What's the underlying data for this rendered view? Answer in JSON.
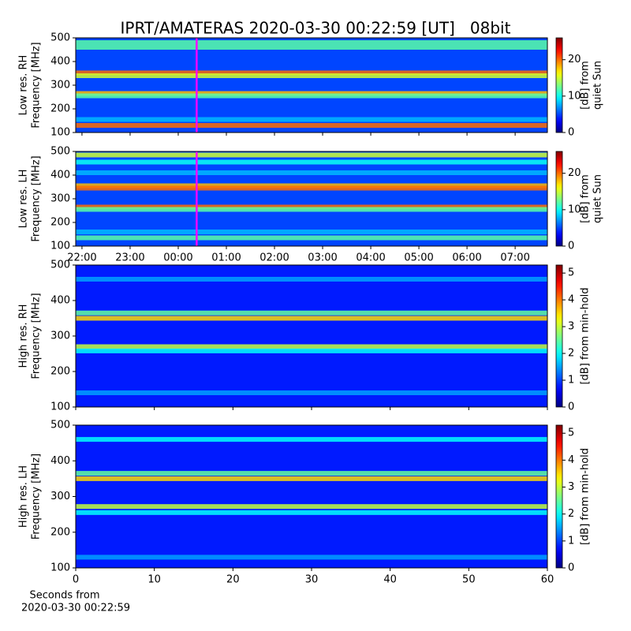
{
  "chart_data": [
    {
      "type": "heatmap",
      "title": "IPRT/AMATERAS 2020-03-30 00:22:59 [UT]   08bit",
      "ylabel": [
        "Low res. RH",
        "Frequency [MHz]"
      ],
      "ylim": [
        100,
        500
      ],
      "yticks": [
        100,
        200,
        300,
        400,
        500
      ],
      "xlim": [
        21.87,
        31.67
      ],
      "background": 5,
      "bands": [
        {
          "freq": 480,
          "level": 12
        },
        {
          "freq": 460,
          "level": 12
        },
        {
          "freq": 352,
          "level": 20
        },
        {
          "freq": 340,
          "level": 15
        },
        {
          "freq": 265,
          "level": 18
        },
        {
          "freq": 255,
          "level": 12
        },
        {
          "freq": 155,
          "level": 8
        },
        {
          "freq": 130,
          "level": 20
        }
      ],
      "marker_x": 24.383,
      "marker_color": "#ff00ff",
      "colorbar": {
        "label": [
          "[dB] from",
          "quiet Sun"
        ],
        "lim": [
          0,
          26
        ],
        "ticks": [
          0,
          10,
          20
        ]
      }
    },
    {
      "type": "heatmap",
      "ylabel": [
        "Low res. LH",
        "Frequency [MHz]"
      ],
      "ylim": [
        100,
        500
      ],
      "yticks": [
        100,
        200,
        300,
        400,
        500
      ],
      "xlim": [
        21.87,
        31.67
      ],
      "xticks": [
        {
          "value": 22,
          "label": "22:00"
        },
        {
          "value": 23,
          "label": "23:00"
        },
        {
          "value": 24,
          "label": "00:00"
        },
        {
          "value": 25,
          "label": "01:00"
        },
        {
          "value": 26,
          "label": "02:00"
        },
        {
          "value": 27,
          "label": "03:00"
        },
        {
          "value": 28,
          "label": "04:00"
        },
        {
          "value": 29,
          "label": "05:00"
        },
        {
          "value": 30,
          "label": "06:00"
        },
        {
          "value": 31,
          "label": "07:00"
        }
      ],
      "background": 5,
      "bands": [
        {
          "freq": 485,
          "level": 15
        },
        {
          "freq": 455,
          "level": 10
        },
        {
          "freq": 410,
          "level": 8
        },
        {
          "freq": 355,
          "level": 18
        },
        {
          "freq": 345,
          "level": 20
        },
        {
          "freq": 265,
          "level": 20
        },
        {
          "freq": 255,
          "level": 12
        },
        {
          "freq": 160,
          "level": 8
        },
        {
          "freq": 135,
          "level": 12
        }
      ],
      "marker_x": 24.383,
      "marker_color": "#ff00ff",
      "colorbar": {
        "label": [
          "[dB] from",
          "quiet Sun"
        ],
        "lim": [
          0,
          26
        ],
        "ticks": [
          0,
          10,
          20
        ]
      }
    },
    {
      "type": "heatmap",
      "ylabel": [
        "High res. RH",
        "Frequency [MHz]"
      ],
      "ylim": [
        100,
        500
      ],
      "yticks": [
        100,
        200,
        300,
        400,
        500
      ],
      "xlim": [
        0,
        60
      ],
      "background": 0.8,
      "bands": [
        {
          "freq": 460,
          "level": 1.5
        },
        {
          "freq": 365,
          "level": 2.5
        },
        {
          "freq": 350,
          "level": 3.5
        },
        {
          "freq": 270,
          "level": 3
        },
        {
          "freq": 258,
          "level": 2
        },
        {
          "freq": 140,
          "level": 1.5
        }
      ],
      "colorbar": {
        "label": [
          "[dB] from min-hold"
        ],
        "lim": [
          0,
          5.3
        ],
        "ticks": [
          0,
          1,
          2,
          3,
          4,
          5
        ]
      }
    },
    {
      "type": "heatmap",
      "ylabel": [
        "High res. LH",
        "Frequency [MHz]"
      ],
      "ylim": [
        100,
        500
      ],
      "yticks": [
        100,
        200,
        300,
        400,
        500
      ],
      "xlim": [
        0,
        60
      ],
      "xticks": [
        0,
        10,
        20,
        30,
        40,
        50,
        60
      ],
      "xlabel": [
        "Seconds from",
        "2020-03-30 00:22:59"
      ],
      "background": 0.8,
      "bands": [
        {
          "freq": 460,
          "level": 2
        },
        {
          "freq": 365,
          "level": 2.5
        },
        {
          "freq": 350,
          "level": 3.5
        },
        {
          "freq": 272,
          "level": 3
        },
        {
          "freq": 255,
          "level": 2
        },
        {
          "freq": 130,
          "level": 1.5
        }
      ],
      "colorbar": {
        "label": [
          "[dB] from min-hold"
        ],
        "lim": [
          0,
          5.3
        ],
        "ticks": [
          0,
          1,
          2,
          3,
          4,
          5
        ]
      }
    }
  ]
}
